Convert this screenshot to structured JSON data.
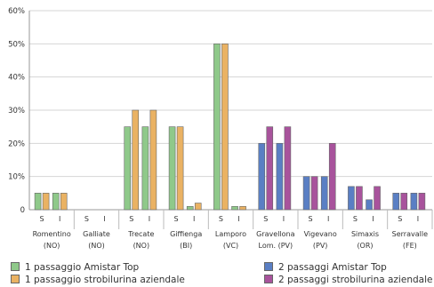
{
  "chart_data": {
    "type": "bar",
    "ylim": [
      0,
      60
    ],
    "yticks": [
      "0",
      "10%",
      "20%",
      "30%",
      "40%",
      "50%",
      "60%"
    ],
    "ytick_values": [
      0,
      10,
      20,
      30,
      40,
      50,
      60
    ],
    "grid": true,
    "legend_position": "bottom",
    "sub_labels": [
      "S",
      "I"
    ],
    "categories": [
      {
        "name": "Romentino",
        "province": "(NO)"
      },
      {
        "name": "Galliate",
        "province": "(NO)"
      },
      {
        "name": "Trecate",
        "province": "(NO)"
      },
      {
        "name": "Giffienga",
        "province": "(BI)"
      },
      {
        "name": "Lamporo",
        "province": "(VC)"
      },
      {
        "name": "Gravellona Lom.",
        "province": "(PV)",
        "line1": "Gravellona",
        "line2": "Lom. (PV)"
      },
      {
        "name": "Vigevano",
        "province": "(PV)"
      },
      {
        "name": "Simaxis",
        "province": "(OR)"
      },
      {
        "name": "Serravalle",
        "province": "(FE)"
      }
    ],
    "series": [
      {
        "name": "1 passaggio Amistar Top",
        "color": "#8fc98a",
        "values": [
          [
            5,
            5
          ],
          [
            0,
            0
          ],
          [
            25,
            25
          ],
          [
            25,
            1
          ],
          [
            50,
            1
          ],
          null,
          null,
          null,
          null
        ]
      },
      {
        "name": "1 passaggio strobilurina aziendale",
        "color": "#eab263",
        "values": [
          [
            5,
            5
          ],
          [
            0,
            0
          ],
          [
            30,
            30
          ],
          [
            25,
            2
          ],
          [
            50,
            1
          ],
          null,
          null,
          null,
          null
        ]
      },
      {
        "name": "2 passaggi Amistar Top",
        "color": "#5a7fc4",
        "values": [
          null,
          null,
          null,
          null,
          null,
          [
            20,
            20
          ],
          [
            10,
            10
          ],
          [
            7,
            3
          ],
          [
            5,
            5
          ]
        ]
      },
      {
        "name": "2 passaggi strobilurina aziendale",
        "color": "#a8539c",
        "values": [
          null,
          null,
          null,
          null,
          null,
          [
            25,
            25
          ],
          [
            10,
            20
          ],
          [
            7,
            7
          ],
          [
            5,
            5
          ]
        ]
      }
    ]
  }
}
